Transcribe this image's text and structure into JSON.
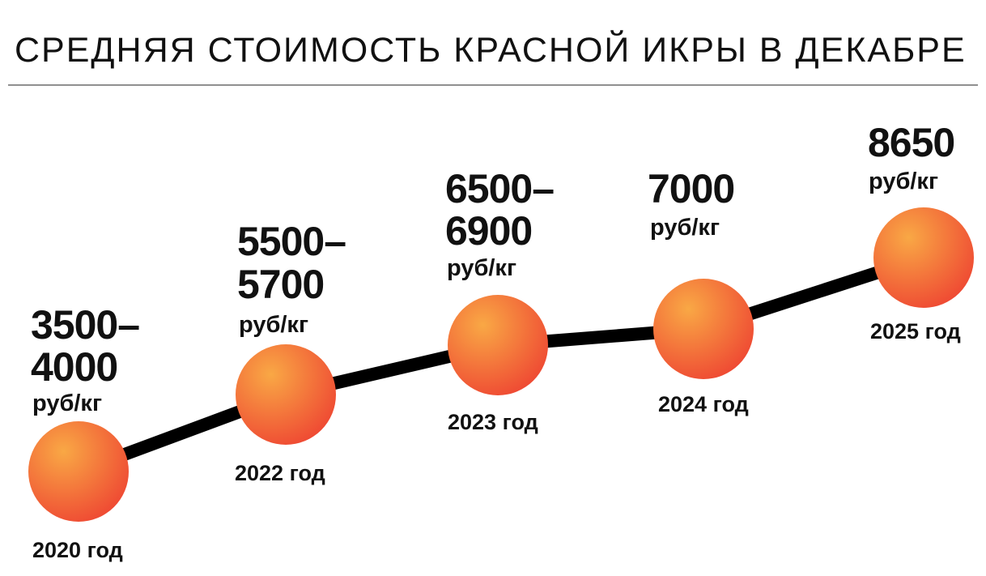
{
  "title": "СРЕДНЯЯ СТОИМОСТЬ КРАСНОЙ ИКРЫ В ДЕКАБРЕ",
  "nodes": [
    {
      "price": [
        "3500–",
        "4000"
      ],
      "unit": "руб/кг",
      "year": "2020 год"
    },
    {
      "price": [
        "5500–",
        "5700"
      ],
      "unit": "руб/кг",
      "year": "2022 год"
    },
    {
      "price": [
        "6500–",
        "6900"
      ],
      "unit": "руб/кг",
      "year": "2023 год"
    },
    {
      "price": [
        "7000"
      ],
      "unit": "руб/кг",
      "year": "2024 год"
    },
    {
      "price": [
        "8650"
      ],
      "unit": "руб/кг",
      "year": "2025 год"
    }
  ]
}
